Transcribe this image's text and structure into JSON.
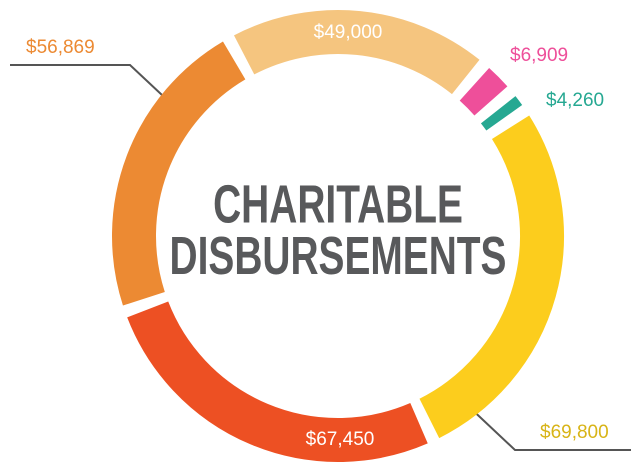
{
  "chart_data": {
    "type": "donut",
    "title": [
      "CHARITABLE",
      "DISBURSEMENTS"
    ],
    "categories": [
      null,
      null,
      null,
      null,
      null,
      null
    ],
    "values": [
      49000,
      6909,
      4260,
      69800,
      67450,
      56869
    ],
    "value_labels": [
      "$49,000",
      "$6,909",
      "$4,260",
      "$69,800",
      "$67,450",
      "$56,869"
    ],
    "colors": [
      "#f5c57f",
      "#ee4f9a",
      "#26a892",
      "#fccd1d",
      "#ed5023",
      "#ec8a33"
    ]
  }
}
